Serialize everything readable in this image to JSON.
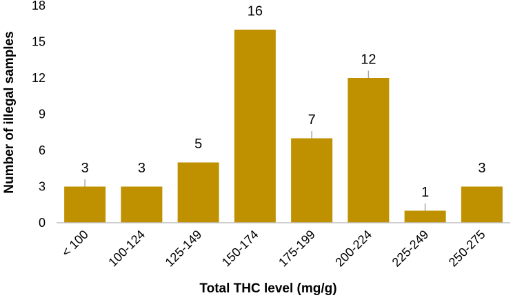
{
  "chart_data": {
    "type": "bar",
    "categories": [
      "< 100",
      "100-124",
      "125-149",
      "150-174",
      "175-199",
      "200-224",
      "225-249",
      "250-275"
    ],
    "values": [
      3,
      3,
      5,
      16,
      7,
      12,
      1,
      3
    ],
    "data_labels": [
      "3",
      "3",
      "5",
      "16",
      "7",
      "12",
      "1",
      "3"
    ],
    "error_bars": [
      0.6,
      0,
      0,
      0,
      0.6,
      0.6,
      0.6,
      0
    ],
    "title": "",
    "xlabel": "Total THC level (mg/g)",
    "ylabel": "Number of illegal samples",
    "ylim": [
      0,
      18
    ],
    "yticks": [
      "0",
      "3",
      "6",
      "9",
      "12",
      "15",
      "18"
    ],
    "grid": false,
    "bar_color": "#BF9000",
    "axis_color": "#BFBFBF",
    "error_color": "#A6A6A6"
  }
}
